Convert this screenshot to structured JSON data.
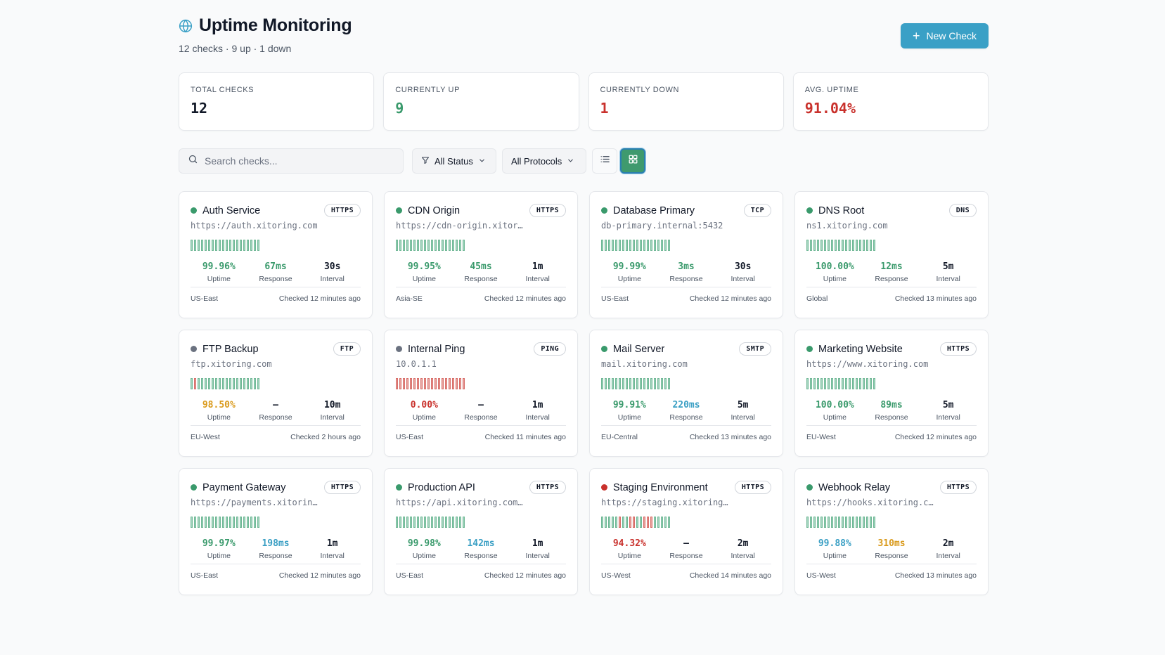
{
  "header": {
    "title": "Uptime Monitoring",
    "subtitle": "12 checks · 9 up · 1 down",
    "new_button": "New Check",
    "icon": "globe-icon",
    "accent_color": "#3aa0c6"
  },
  "stats": [
    {
      "label": "TOTAL CHECKS",
      "value": "12",
      "color": "#111827"
    },
    {
      "label": "CURRENTLY UP",
      "value": "9",
      "color": "#3a9a6c"
    },
    {
      "label": "CURRENTLY DOWN",
      "value": "1",
      "color": "#c9312c"
    },
    {
      "label": "AVG. UPTIME",
      "value": "91.04%",
      "color": "#c9312c"
    }
  ],
  "toolbar": {
    "search_placeholder": "Search checks...",
    "status_filter": "All Status",
    "protocol_filter": "All Protocols",
    "active_view": "grid"
  },
  "metric_labels": {
    "uptime": "Uptime",
    "response": "Response",
    "interval": "Interval"
  },
  "colors": {
    "up": "#3a9a6c",
    "paused": "#6b7280",
    "down": "#c9312c",
    "good": "#3a9a6c",
    "fair": "#3a9fc4",
    "warn": "#d99a1c",
    "bad": "#c9312c"
  },
  "checks": [
    {
      "name": "Auth Service",
      "protocol": "HTTPS",
      "url": "https://auth.xitoring.com",
      "status": "up",
      "uptime": "99.96%",
      "uptime_tone": "good",
      "response": "67ms",
      "response_tone": "good",
      "interval": "30s",
      "region": "US-East",
      "checked": "Checked 12 minutes ago",
      "history": "gggggggggggggggggggg"
    },
    {
      "name": "CDN Origin",
      "protocol": "HTTPS",
      "url": "https://cdn-origin.xitoring.com",
      "status": "up",
      "uptime": "99.95%",
      "uptime_tone": "good",
      "response": "45ms",
      "response_tone": "good",
      "interval": "1m",
      "region": "Asia-SE",
      "checked": "Checked 12 minutes ago",
      "history": "gggggggggggggggggggg"
    },
    {
      "name": "Database Primary",
      "protocol": "TCP",
      "url": "db-primary.internal:5432",
      "status": "up",
      "uptime": "99.99%",
      "uptime_tone": "good",
      "response": "3ms",
      "response_tone": "good",
      "interval": "30s",
      "region": "US-East",
      "checked": "Checked 12 minutes ago",
      "history": "gggggggggggggggggggg"
    },
    {
      "name": "DNS Root",
      "protocol": "DNS",
      "url": "ns1.xitoring.com",
      "status": "up",
      "uptime": "100.00%",
      "uptime_tone": "good",
      "response": "12ms",
      "response_tone": "good",
      "interval": "5m",
      "region": "Global",
      "checked": "Checked 13 minutes ago",
      "history": "gggggggggggggggggggg"
    },
    {
      "name": "FTP Backup",
      "protocol": "FTP",
      "url": "ftp.xitoring.com",
      "status": "paused",
      "uptime": "98.50%",
      "uptime_tone": "warn",
      "response": "—",
      "response_tone": "none",
      "interval": "10m",
      "region": "EU-West",
      "checked": "Checked 2 hours ago",
      "history": "grgggggggggggggggggg"
    },
    {
      "name": "Internal Ping",
      "protocol": "PING",
      "url": "10.0.1.1",
      "status": "paused",
      "uptime": "0.00%",
      "uptime_tone": "bad",
      "response": "—",
      "response_tone": "none",
      "interval": "1m",
      "region": "US-East",
      "checked": "Checked 11 minutes ago",
      "history": "rrrrrrrrrrrrrrrrrrrr"
    },
    {
      "name": "Mail Server",
      "protocol": "SMTP",
      "url": "mail.xitoring.com",
      "status": "up",
      "uptime": "99.91%",
      "uptime_tone": "good",
      "response": "220ms",
      "response_tone": "fair",
      "interval": "5m",
      "region": "EU-Central",
      "checked": "Checked 13 minutes ago",
      "history": "gggggggggggggggggggg"
    },
    {
      "name": "Marketing Website",
      "protocol": "HTTPS",
      "url": "https://www.xitoring.com",
      "status": "up",
      "uptime": "100.00%",
      "uptime_tone": "good",
      "response": "89ms",
      "response_tone": "good",
      "interval": "5m",
      "region": "EU-West",
      "checked": "Checked 12 minutes ago",
      "history": "gggggggggggggggggggg"
    },
    {
      "name": "Payment Gateway",
      "protocol": "HTTPS",
      "url": "https://payments.xitoring.com",
      "status": "up",
      "uptime": "99.97%",
      "uptime_tone": "good",
      "response": "198ms",
      "response_tone": "fair",
      "interval": "1m",
      "region": "US-East",
      "checked": "Checked 12 minutes ago",
      "history": "gggggggggggggggggggg"
    },
    {
      "name": "Production API",
      "protocol": "HTTPS",
      "url": "https://api.xitoring.com/health",
      "status": "up",
      "uptime": "99.98%",
      "uptime_tone": "good",
      "response": "142ms",
      "response_tone": "fair",
      "interval": "1m",
      "region": "US-East",
      "checked": "Checked 12 minutes ago",
      "history": "gggggggggggggggggggg"
    },
    {
      "name": "Staging Environment",
      "protocol": "HTTPS",
      "url": "https://staging.xitoring.com",
      "status": "down",
      "uptime": "94.32%",
      "uptime_tone": "bad",
      "response": "—",
      "response_tone": "none",
      "interval": "2m",
      "region": "US-West",
      "checked": "Checked 14 minutes ago",
      "history": "gggggrggrrggrrrggggg"
    },
    {
      "name": "Webhook Relay",
      "protocol": "HTTPS",
      "url": "https://hooks.xitoring.com",
      "status": "up",
      "uptime": "99.88%",
      "uptime_tone": "fair",
      "response": "310ms",
      "response_tone": "warn",
      "interval": "2m",
      "region": "US-West",
      "checked": "Checked 13 minutes ago",
      "history": "gggggggggggggggggggg"
    }
  ]
}
